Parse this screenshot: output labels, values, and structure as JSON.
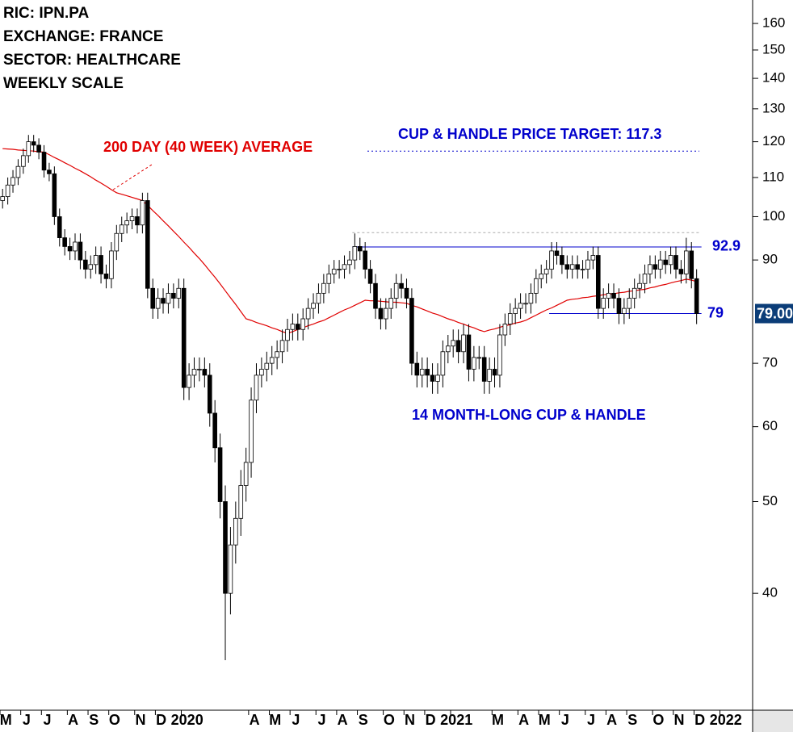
{
  "chart_data": {
    "type": "candlestick",
    "header": [
      "RIC: IPN.PA",
      "EXCHANGE: FRANCE",
      "SECTOR: HEALTHCARE",
      "WEEKLY SCALE"
    ],
    "annotations": {
      "average": "200 DAY (40 WEEK) AVERAGE",
      "target": "CUP & HANDLE PRICE TARGET: 117.3",
      "pattern": "14 MONTH-LONG CUP & HANDLE"
    },
    "log_scale": true,
    "ylim": [
      30.1,
      169.4
    ],
    "yticks": [
      40,
      50,
      60,
      70,
      90,
      100,
      110,
      120,
      130,
      140,
      150,
      160
    ],
    "up_color": "#ffffff",
    "down_color": "#000000",
    "average_color": "#e00000",
    "level_color": "#0000cc",
    "target": 117.3,
    "rim": 96.2,
    "levels": [
      92.9,
      79
    ],
    "last_price": {
      "value": 79,
      "label": "79.00"
    },
    "categories": [
      "M",
      null,
      null,
      null,
      "J",
      null,
      null,
      null,
      "J",
      null,
      null,
      null,
      null,
      "A",
      null,
      null,
      null,
      "S",
      null,
      null,
      null,
      "O",
      null,
      null,
      null,
      null,
      "N",
      null,
      null,
      null,
      "D",
      null,
      null,
      null,
      null,
      "2020",
      null,
      null,
      null,
      null,
      null,
      null,
      null,
      null,
      null,
      null,
      null,
      null,
      "A",
      null,
      null,
      null,
      "M",
      null,
      null,
      null,
      "J",
      null,
      null,
      null,
      null,
      "J",
      null,
      null,
      null,
      "A",
      null,
      null,
      null,
      "S",
      null,
      null,
      null,
      null,
      "O",
      null,
      null,
      null,
      "N",
      null,
      null,
      null,
      "D",
      null,
      null,
      null,
      null,
      "2021",
      null,
      null,
      null,
      null,
      null,
      null,
      null,
      "M",
      null,
      null,
      null,
      null,
      "A",
      null,
      null,
      null,
      "M",
      null,
      null,
      null,
      "J",
      null,
      null,
      null,
      null,
      "J",
      null,
      null,
      null,
      "A",
      null,
      null,
      null,
      "S",
      null,
      null,
      null,
      null,
      "O",
      null,
      null,
      null,
      "N",
      null,
      null,
      null,
      "D",
      null,
      null,
      null,
      null,
      "2022",
      null,
      null,
      null,
      null,
      null
    ],
    "open": [
      104,
      105,
      108,
      110,
      113,
      116,
      120,
      119,
      117,
      112,
      111,
      100,
      95,
      93,
      92,
      94,
      90,
      88,
      89,
      91,
      87,
      86,
      92,
      96,
      98,
      99,
      100,
      98,
      104,
      84,
      80,
      82,
      81,
      83,
      82,
      84,
      66,
      68,
      69,
      69,
      68,
      62,
      57,
      50,
      40,
      45,
      48,
      52,
      55,
      64,
      68,
      69,
      70,
      71,
      72,
      74,
      76,
      77,
      76,
      78,
      80,
      81,
      83,
      85,
      87,
      88,
      88,
      89,
      90,
      93,
      92,
      88,
      85,
      80,
      78,
      80,
      82,
      85,
      84,
      82,
      70,
      68,
      69,
      68,
      67,
      68,
      72,
      73,
      74,
      72,
      75,
      69,
      71,
      71,
      67,
      69,
      68,
      75,
      77,
      79,
      80,
      81,
      81,
      83,
      86,
      87,
      88,
      92,
      91,
      89,
      88,
      89,
      88,
      88,
      90,
      91,
      80,
      82,
      83,
      82,
      79,
      80,
      82,
      84,
      85,
      87,
      89,
      88,
      90,
      89,
      91,
      88,
      87,
      92,
      86,
      null,
      null,
      null,
      null,
      null,
      null,
      null,
      null,
      null,
      null
    ],
    "high": [
      107,
      110,
      112,
      115,
      118,
      122,
      122,
      121,
      119,
      114,
      113,
      102,
      97,
      95,
      96,
      96,
      92,
      91,
      93,
      93,
      89,
      94,
      98,
      100,
      101,
      102,
      102,
      106,
      106,
      86,
      84,
      84,
      85,
      85,
      86,
      86,
      70,
      71,
      71,
      71,
      70,
      64,
      59,
      52,
      47,
      50,
      54,
      57,
      66,
      70,
      71,
      72,
      73,
      74,
      76,
      78,
      79,
      79,
      80,
      82,
      83,
      85,
      87,
      89,
      90,
      90,
      91,
      92,
      96,
      95,
      94,
      90,
      87,
      82,
      82,
      84,
      87,
      87,
      86,
      84,
      72,
      71,
      71,
      70,
      70,
      74,
      75,
      76,
      76,
      77,
      77,
      73,
      73,
      73,
      71,
      71,
      77,
      79,
      81,
      82,
      83,
      83,
      85,
      88,
      89,
      90,
      94,
      94,
      93,
      91,
      91,
      91,
      90,
      92,
      93,
      93,
      84,
      85,
      85,
      84,
      82,
      84,
      86,
      87,
      89,
      91,
      91,
      92,
      92,
      93,
      93,
      90,
      95,
      94,
      88,
      null,
      null,
      null,
      null,
      null,
      null,
      null,
      null,
      null,
      null
    ],
    "low": [
      102,
      103,
      106,
      108,
      111,
      114,
      117,
      115,
      110,
      109,
      98,
      93,
      91,
      90,
      90,
      88,
      86,
      86,
      87,
      85,
      84,
      84,
      90,
      94,
      96,
      97,
      96,
      96,
      82,
      78,
      78,
      79,
      79,
      80,
      80,
      64,
      64,
      66,
      67,
      66,
      60,
      55,
      48,
      34,
      38,
      43,
      46,
      50,
      53,
      62,
      66,
      67,
      68,
      69,
      70,
      72,
      74,
      74,
      74,
      76,
      78,
      79,
      81,
      83,
      85,
      86,
      86,
      87,
      88,
      90,
      86,
      83,
      78,
      76,
      76,
      78,
      80,
      82,
      80,
      68,
      66,
      66,
      66,
      65,
      65,
      66,
      70,
      71,
      70,
      70,
      67,
      67,
      69,
      65,
      65,
      66,
      66,
      73,
      75,
      77,
      78,
      79,
      79,
      81,
      84,
      85,
      86,
      89,
      87,
      86,
      86,
      86,
      86,
      86,
      88,
      78,
      78,
      80,
      80,
      77,
      77,
      78,
      80,
      82,
      83,
      85,
      86,
      86,
      87,
      87,
      86,
      85,
      85,
      84,
      77,
      null,
      null,
      null,
      null,
      null,
      null,
      null,
      null,
      null,
      null
    ],
    "close": [
      105,
      108,
      110,
      113,
      116,
      120,
      119,
      117,
      112,
      111,
      100,
      95,
      93,
      92,
      94,
      90,
      88,
      89,
      91,
      87,
      86,
      92,
      96,
      98,
      99,
      100,
      98,
      104,
      84,
      80,
      82,
      81,
      83,
      82,
      84,
      66,
      68,
      69,
      69,
      68,
      62,
      57,
      50,
      40,
      45,
      48,
      52,
      55,
      64,
      68,
      69,
      70,
      71,
      72,
      74,
      76,
      77,
      76,
      78,
      80,
      81,
      83,
      85,
      87,
      88,
      88,
      89,
      90,
      93,
      92,
      88,
      85,
      80,
      78,
      80,
      82,
      85,
      84,
      82,
      70,
      68,
      69,
      68,
      67,
      68,
      72,
      73,
      74,
      72,
      75,
      69,
      71,
      71,
      67,
      69,
      68,
      75,
      77,
      79,
      80,
      81,
      81,
      83,
      86,
      87,
      88,
      92,
      91,
      89,
      88,
      89,
      88,
      88,
      90,
      91,
      80,
      82,
      83,
      82,
      79,
      80,
      82,
      84,
      85,
      87,
      89,
      88,
      90,
      89,
      91,
      88,
      87,
      92,
      86,
      79,
      null,
      null,
      null,
      null,
      null,
      null,
      null,
      null,
      null,
      null
    ],
    "average": [
      118,
      117.9,
      117.8,
      117.6,
      117.5,
      117.4,
      117.3,
      117.1,
      117,
      116.3,
      115.5,
      114.8,
      114,
      113.3,
      112.5,
      111.8,
      111,
      110.2,
      109.3,
      108.5,
      107.7,
      106.8,
      106,
      105.6,
      105.2,
      104.8,
      104.4,
      104,
      102.8,
      101.5,
      100.3,
      99,
      97.8,
      96.5,
      95.3,
      94,
      92.8,
      91.5,
      90.3,
      89,
      87.6,
      86.3,
      84.9,
      83.5,
      82.1,
      80.8,
      79.4,
      78,
      77.7,
      77.3,
      77,
      76.7,
      76.3,
      76,
      75.6,
      75.3,
      75.6,
      76,
      76.3,
      76.7,
      77,
      77.4,
      77.7,
      78.2,
      78.7,
      79.2,
      79.7,
      80.1,
      80.6,
      81.1,
      81.6,
      81.5,
      81.5,
      81.4,
      81.3,
      81.2,
      81.2,
      81.1,
      81,
      80.6,
      80.3,
      79.9,
      79.5,
      79.1,
      78.8,
      78.4,
      78,
      77.7,
      77.3,
      77,
      76.6,
      76.3,
      75.9,
      75.6,
      75.9,
      76.1,
      76.4,
      76.7,
      76.9,
      77.2,
      77.4,
      77.7,
      78.2,
      78.7,
      79.2,
      79.7,
      80.1,
      80.6,
      81.1,
      81.6,
      81.8,
      81.9,
      82.1,
      82.2,
      82.4,
      82.5,
      82.7,
      82.8,
      82.9,
      83.1,
      83.2,
      83.4,
      83.5,
      83.7,
      83.8,
      84.1,
      84.3,
      84.6,
      84.8,
      85.1,
      85.4,
      85.6,
      85.9,
      85.7,
      85.4,
      null,
      null,
      null,
      null,
      null,
      null,
      null,
      null,
      null,
      null
    ]
  }
}
